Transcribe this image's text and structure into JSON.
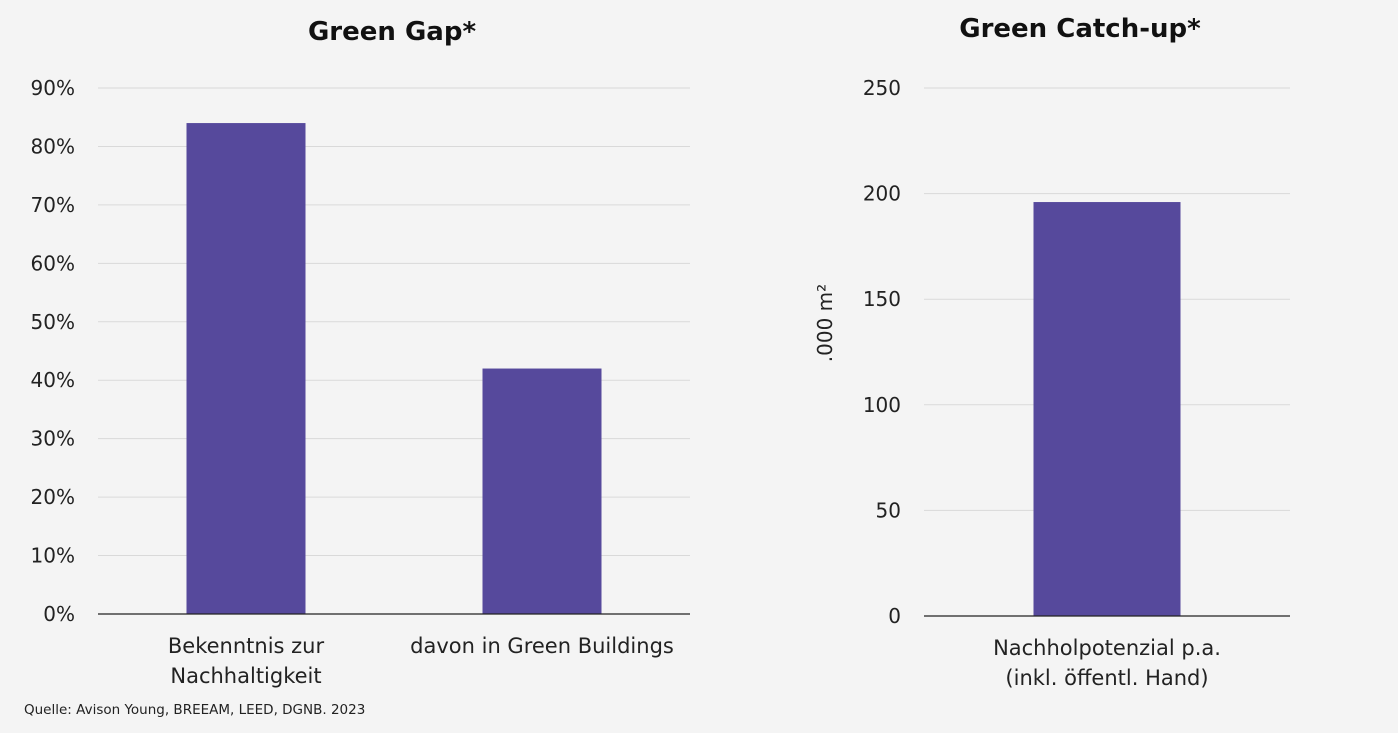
{
  "colors": {
    "bar": "#56499c",
    "grid": "#d9d9d9",
    "axis": "#222222",
    "background": "#f4f4f4"
  },
  "chart_data": [
    {
      "type": "bar",
      "title": "Green Gap*",
      "categories": [
        [
          "Bekenntnis zur",
          "Nachhaltigkeit"
        ],
        [
          "davon in Green Buildings"
        ]
      ],
      "values": [
        84,
        42
      ],
      "unit": "%",
      "ylabel": "",
      "ylim": [
        0,
        90
      ],
      "yticks": [
        0,
        10,
        20,
        30,
        40,
        50,
        60,
        70,
        80,
        90
      ],
      "ytick_labels": [
        "0%",
        "10%",
        "20%",
        "30%",
        "40%",
        "50%",
        "60%",
        "70%",
        "80%",
        "90%"
      ],
      "grid": true,
      "legend": "none"
    },
    {
      "type": "bar",
      "title": "Green Catch-up*",
      "categories": [
        [
          "Nachholpotenzial p.a.",
          "(inkl. öffentl. Hand)"
        ]
      ],
      "values": [
        196
      ],
      "ylabel": ".000 m²",
      "ylim": [
        0,
        250
      ],
      "yticks": [
        0,
        50,
        100,
        150,
        200,
        250
      ],
      "ytick_labels": [
        "0",
        "50",
        "100",
        "150",
        "200",
        "250"
      ],
      "grid": true,
      "legend": "none"
    }
  ],
  "footer": {
    "source": "Quelle: Avison Young, BREEAM, LEED, DGNB. 2023"
  }
}
